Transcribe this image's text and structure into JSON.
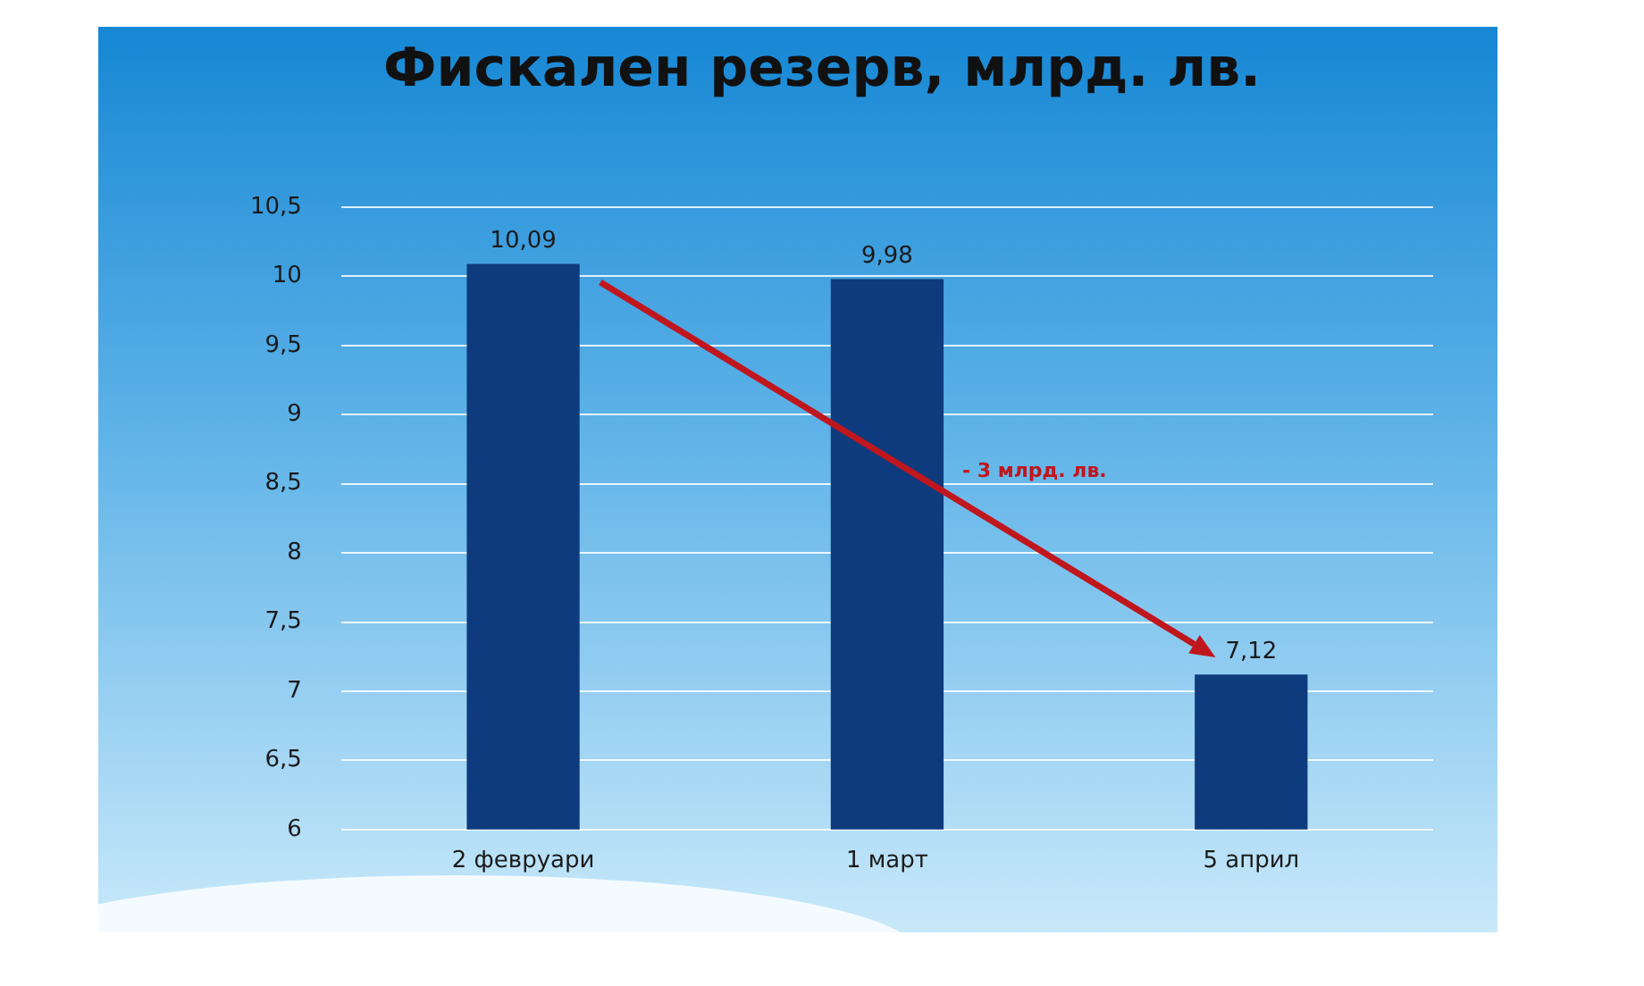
{
  "chart_data": {
    "type": "bar",
    "title": "Фискален резерв, млрд. лв.",
    "categories": [
      "2 февруари",
      "1 март",
      "5 април"
    ],
    "values": [
      10.09,
      9.98,
      7.12
    ],
    "color": "#0e3b7d",
    "ylim": [
      6,
      10.5
    ],
    "yticks": [
      6,
      {
        "value": 6.5,
        "label": "6,5"
      },
      7,
      {
        "value": 7.5,
        "label": "7,5"
      },
      8,
      {
        "value": 8.5,
        "label": "8,5"
      },
      9,
      {
        "value": 9.5,
        "label": "9,5"
      },
      10,
      {
        "value": 10.5,
        "label": "10,5"
      }
    ],
    "grid": "y",
    "value_labels": [
      "10,09",
      "9,98",
      "7,12"
    ],
    "annotations": [
      "- 3 млрд. лв."
    ]
  }
}
